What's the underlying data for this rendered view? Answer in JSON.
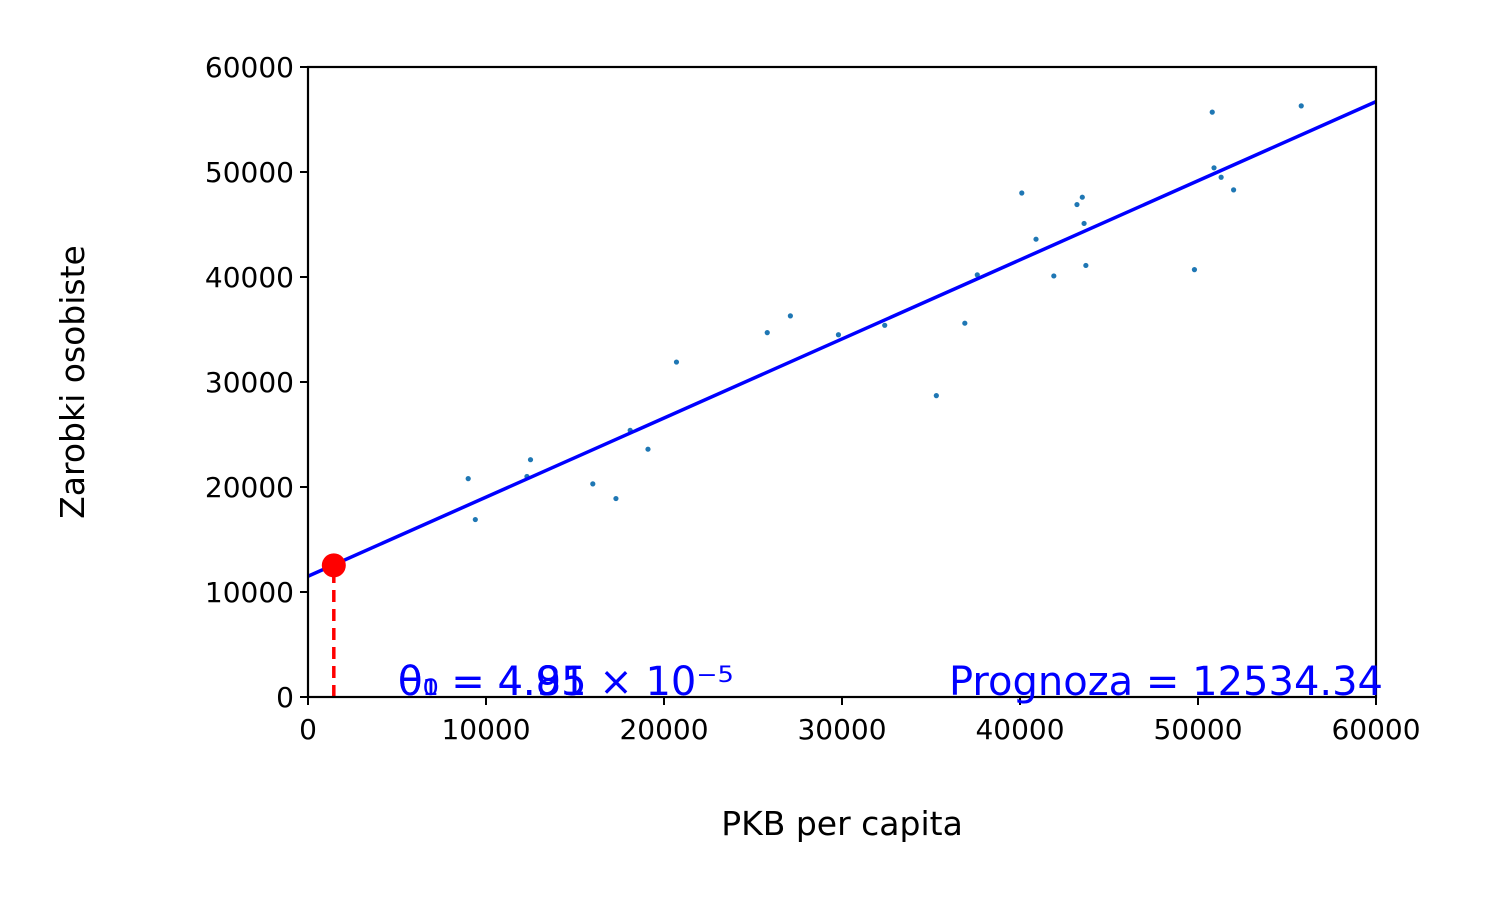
{
  "chart_data": {
    "type": "scatter",
    "xlabel": "PKB per capita",
    "ylabel": "Zarobki osobiste",
    "xlim": [
      0,
      60000
    ],
    "ylim": [
      0,
      60000
    ],
    "x_ticks": [
      0,
      10000,
      20000,
      30000,
      40000,
      50000,
      60000
    ],
    "y_ticks": [
      0,
      10000,
      20000,
      30000,
      40000,
      50000,
      60000
    ],
    "x_tick_labels": [
      "0",
      "10000",
      "20000",
      "30000",
      "40000",
      "50000",
      "60000"
    ],
    "y_tick_labels": [
      "0",
      "10000",
      "20000",
      "30000",
      "40000",
      "50000",
      "60000"
    ],
    "grid": false,
    "colors": {
      "points": "#1f77b4",
      "fit_line": "#0000ff",
      "prediction": "#ff0000",
      "annotation": "#0000ff"
    },
    "points": [
      {
        "x": 9000,
        "y": 20800
      },
      {
        "x": 9400,
        "y": 16900
      },
      {
        "x": 12300,
        "y": 21000
      },
      {
        "x": 12500,
        "y": 22600
      },
      {
        "x": 16000,
        "y": 20300
      },
      {
        "x": 17300,
        "y": 18900
      },
      {
        "x": 18100,
        "y": 25400
      },
      {
        "x": 19100,
        "y": 23600
      },
      {
        "x": 20700,
        "y": 31900
      },
      {
        "x": 25800,
        "y": 34700
      },
      {
        "x": 27100,
        "y": 36300
      },
      {
        "x": 29800,
        "y": 34500
      },
      {
        "x": 32400,
        "y": 35400
      },
      {
        "x": 35300,
        "y": 28700
      },
      {
        "x": 36900,
        "y": 35600
      },
      {
        "x": 37600,
        "y": 40200
      },
      {
        "x": 40100,
        "y": 48000
      },
      {
        "x": 40900,
        "y": 43600
      },
      {
        "x": 41900,
        "y": 40100
      },
      {
        "x": 43200,
        "y": 46900
      },
      {
        "x": 43500,
        "y": 47600
      },
      {
        "x": 43600,
        "y": 45100
      },
      {
        "x": 43700,
        "y": 41100
      },
      {
        "x": 49800,
        "y": 40700
      },
      {
        "x": 50800,
        "y": 55700
      },
      {
        "x": 50900,
        "y": 50400
      },
      {
        "x": 51300,
        "y": 49500
      },
      {
        "x": 52000,
        "y": 48300
      },
      {
        "x": 55800,
        "y": 56300
      }
    ],
    "fit_line": {
      "x": [
        0,
        60000
      ],
      "y": [
        11500,
        56700
      ]
    },
    "prediction": {
      "x": 1450,
      "y": 12534.34
    },
    "annotations": {
      "theta0": "θ₀ = 4.85",
      "theta1": "θ₁ = 4.91 × 10⁻⁵",
      "prognoza": "Prognoza = 12534.34"
    }
  }
}
